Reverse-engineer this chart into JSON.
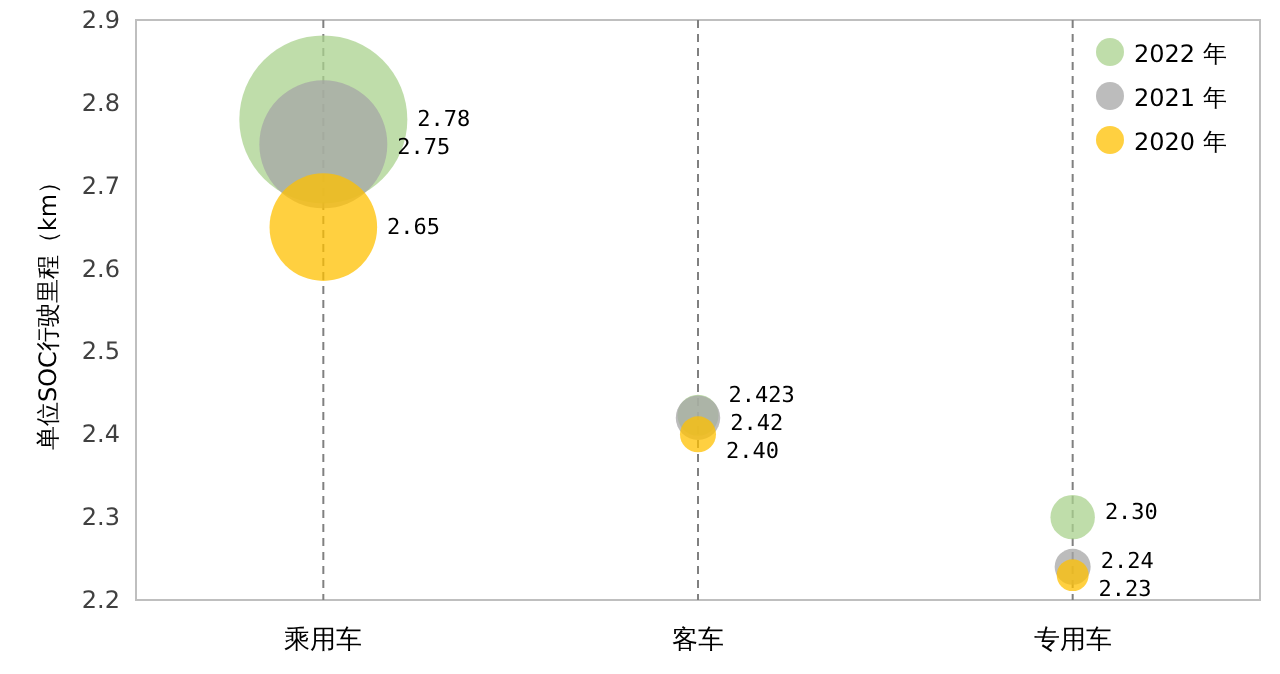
{
  "chart_data": {
    "type": "bubble",
    "ylabel": "单位SOC行驶里程（km）",
    "categories": [
      "乘用车",
      "客车",
      "专用车"
    ],
    "ylim": [
      2.2,
      2.9
    ],
    "yticks": [
      2.2,
      2.3,
      2.4,
      2.5,
      2.6,
      2.7,
      2.8,
      2.9
    ],
    "grid": "x",
    "legend": "top right",
    "marker": "circle",
    "series": [
      {
        "name": "2022 年",
        "color": "#a9d18e",
        "values": [
          2.78,
          2.423,
          2.3
        ],
        "sizes": [
          1,
          0.06,
          0.07
        ],
        "value_labels": [
          "2.78",
          "2.423",
          "2.30"
        ]
      },
      {
        "name": "2021 年",
        "color": "#a5a5a5",
        "values": [
          2.75,
          2.42,
          2.24
        ],
        "sizes": [
          0.58,
          0.07,
          0.046
        ],
        "value_labels": [
          "2.75",
          "2.42",
          "2.24"
        ]
      },
      {
        "name": "2020 年",
        "color": "#ffc000",
        "values": [
          2.65,
          2.4,
          2.23
        ],
        "sizes": [
          0.41,
          0.046,
          0.036
        ],
        "value_labels": [
          "2.65",
          "2.40",
          "2.23"
        ]
      }
    ]
  }
}
